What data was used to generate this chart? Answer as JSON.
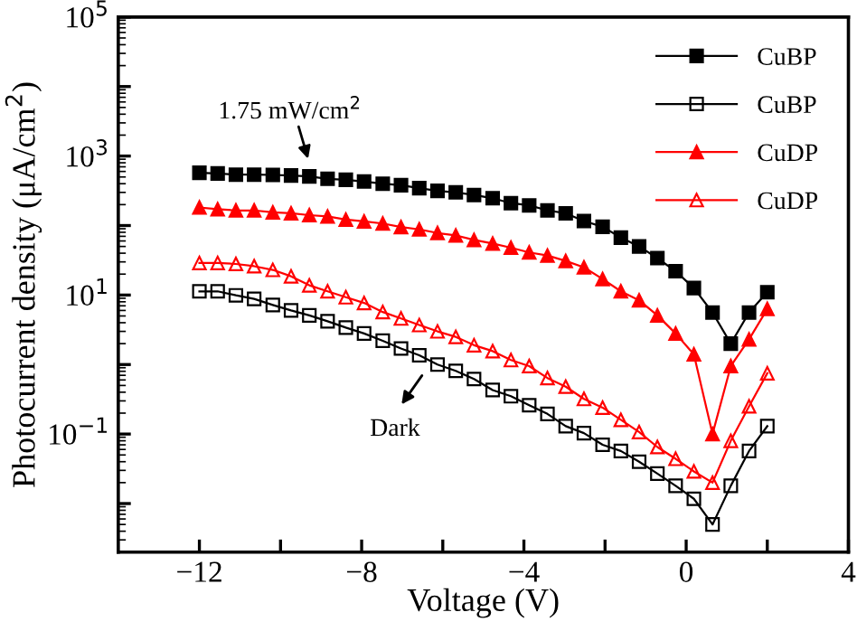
{
  "chart_data": {
    "type": "line",
    "xlabel": "Voltage (V)",
    "ylabel": "Photocurrent density (μA/cm$^{2}$)",
    "log": "y",
    "xlim": [
      -14,
      4
    ],
    "ylim": [
      0.002,
      100000
    ],
    "xticks": [
      {
        "value": -12,
        "label": "−12"
      },
      {
        "value": -10,
        "label": null
      },
      {
        "value": -8,
        "label": "−8"
      },
      {
        "value": -6,
        "label": null
      },
      {
        "value": -4,
        "label": "−4"
      },
      {
        "value": -2,
        "label": null
      },
      0,
      {
        "value": 2,
        "label": null
      },
      4
    ],
    "yticks": [
      {
        "value": 0.01,
        "label": null
      },
      {
        "value": 0.1,
        "label": "10$^{−1}$"
      },
      {
        "value": 1,
        "label": null
      },
      {
        "value": 10,
        "label": "10$^{1}$"
      },
      {
        "value": 100,
        "label": null
      },
      {
        "value": 1000,
        "label": "10$^{3}$"
      },
      {
        "value": 10000,
        "label": null
      },
      {
        "value": 100000,
        "label": "10$^{5}$"
      }
    ],
    "x": [
      -12,
      -11.55,
      -11.1,
      -10.65,
      -10.19,
      -9.74,
      -9.29,
      -8.84,
      -8.39,
      -7.94,
      -7.48,
      -7.03,
      -6.58,
      -6.13,
      -5.68,
      -5.23,
      -4.77,
      -4.32,
      -3.87,
      -3.42,
      -2.97,
      -2.52,
      -2.06,
      -1.61,
      -1.16,
      -0.71,
      -0.26,
      0.19,
      0.65,
      1.1,
      1.55,
      2
    ],
    "grid": false,
    "legend": "top right",
    "line_style": "solid",
    "series": [
      {
        "name": "CuBP",
        "color": "#000000",
        "marker": "square",
        "values": [
          575,
          562,
          540,
          540,
          535,
          525,
          510,
          470,
          455,
          430,
          400,
          380,
          345,
          315,
          300,
          275,
          247,
          210,
          195,
          165,
          150,
          116,
          96,
          67,
          50,
          34,
          22,
          12.6,
          5.6,
          2.0,
          5.6,
          11
        ]
      },
      {
        "name": "CuBP",
        "color": "#000000",
        "marker": "square",
        "values": [
          11.3,
          11.3,
          9.9,
          8.8,
          7.2,
          6.0,
          5.1,
          4.2,
          3.4,
          2.8,
          2.2,
          1.7,
          1.36,
          1.0,
          0.81,
          0.62,
          0.43,
          0.35,
          0.26,
          0.195,
          0.13,
          0.103,
          0.07,
          0.057,
          0.04,
          0.027,
          0.018,
          0.0117,
          0.005,
          0.018,
          0.057,
          0.13
        ]
      },
      {
        "name": "CuDP",
        "color": "#ff0000",
        "marker": "triangle",
        "values": [
          182,
          172,
          165,
          165,
          155,
          150,
          141,
          135,
          122,
          115,
          107,
          95,
          88,
          78,
          72,
          62,
          55,
          48,
          41,
          37,
          31,
          25,
          17,
          11.3,
          8.4,
          5.1,
          2.8,
          1.4,
          0.1,
          0.95,
          2.3,
          6.3
        ]
      },
      {
        "name": "CuDP",
        "color": "#ff0000",
        "marker": "triangle",
        "values": [
          29,
          29,
          28,
          26,
          23,
          18.6,
          13.8,
          11.3,
          9.3,
          7.7,
          5.7,
          4.6,
          3.7,
          3.0,
          2.5,
          1.9,
          1.56,
          1.16,
          0.95,
          0.64,
          0.48,
          0.32,
          0.24,
          0.16,
          0.107,
          0.065,
          0.044,
          0.029,
          0.02,
          0.08,
          0.25,
          0.75
        ]
      }
    ],
    "annotations": [
      "1.75 mW/cm$^{2}$",
      "Dark"
    ]
  }
}
